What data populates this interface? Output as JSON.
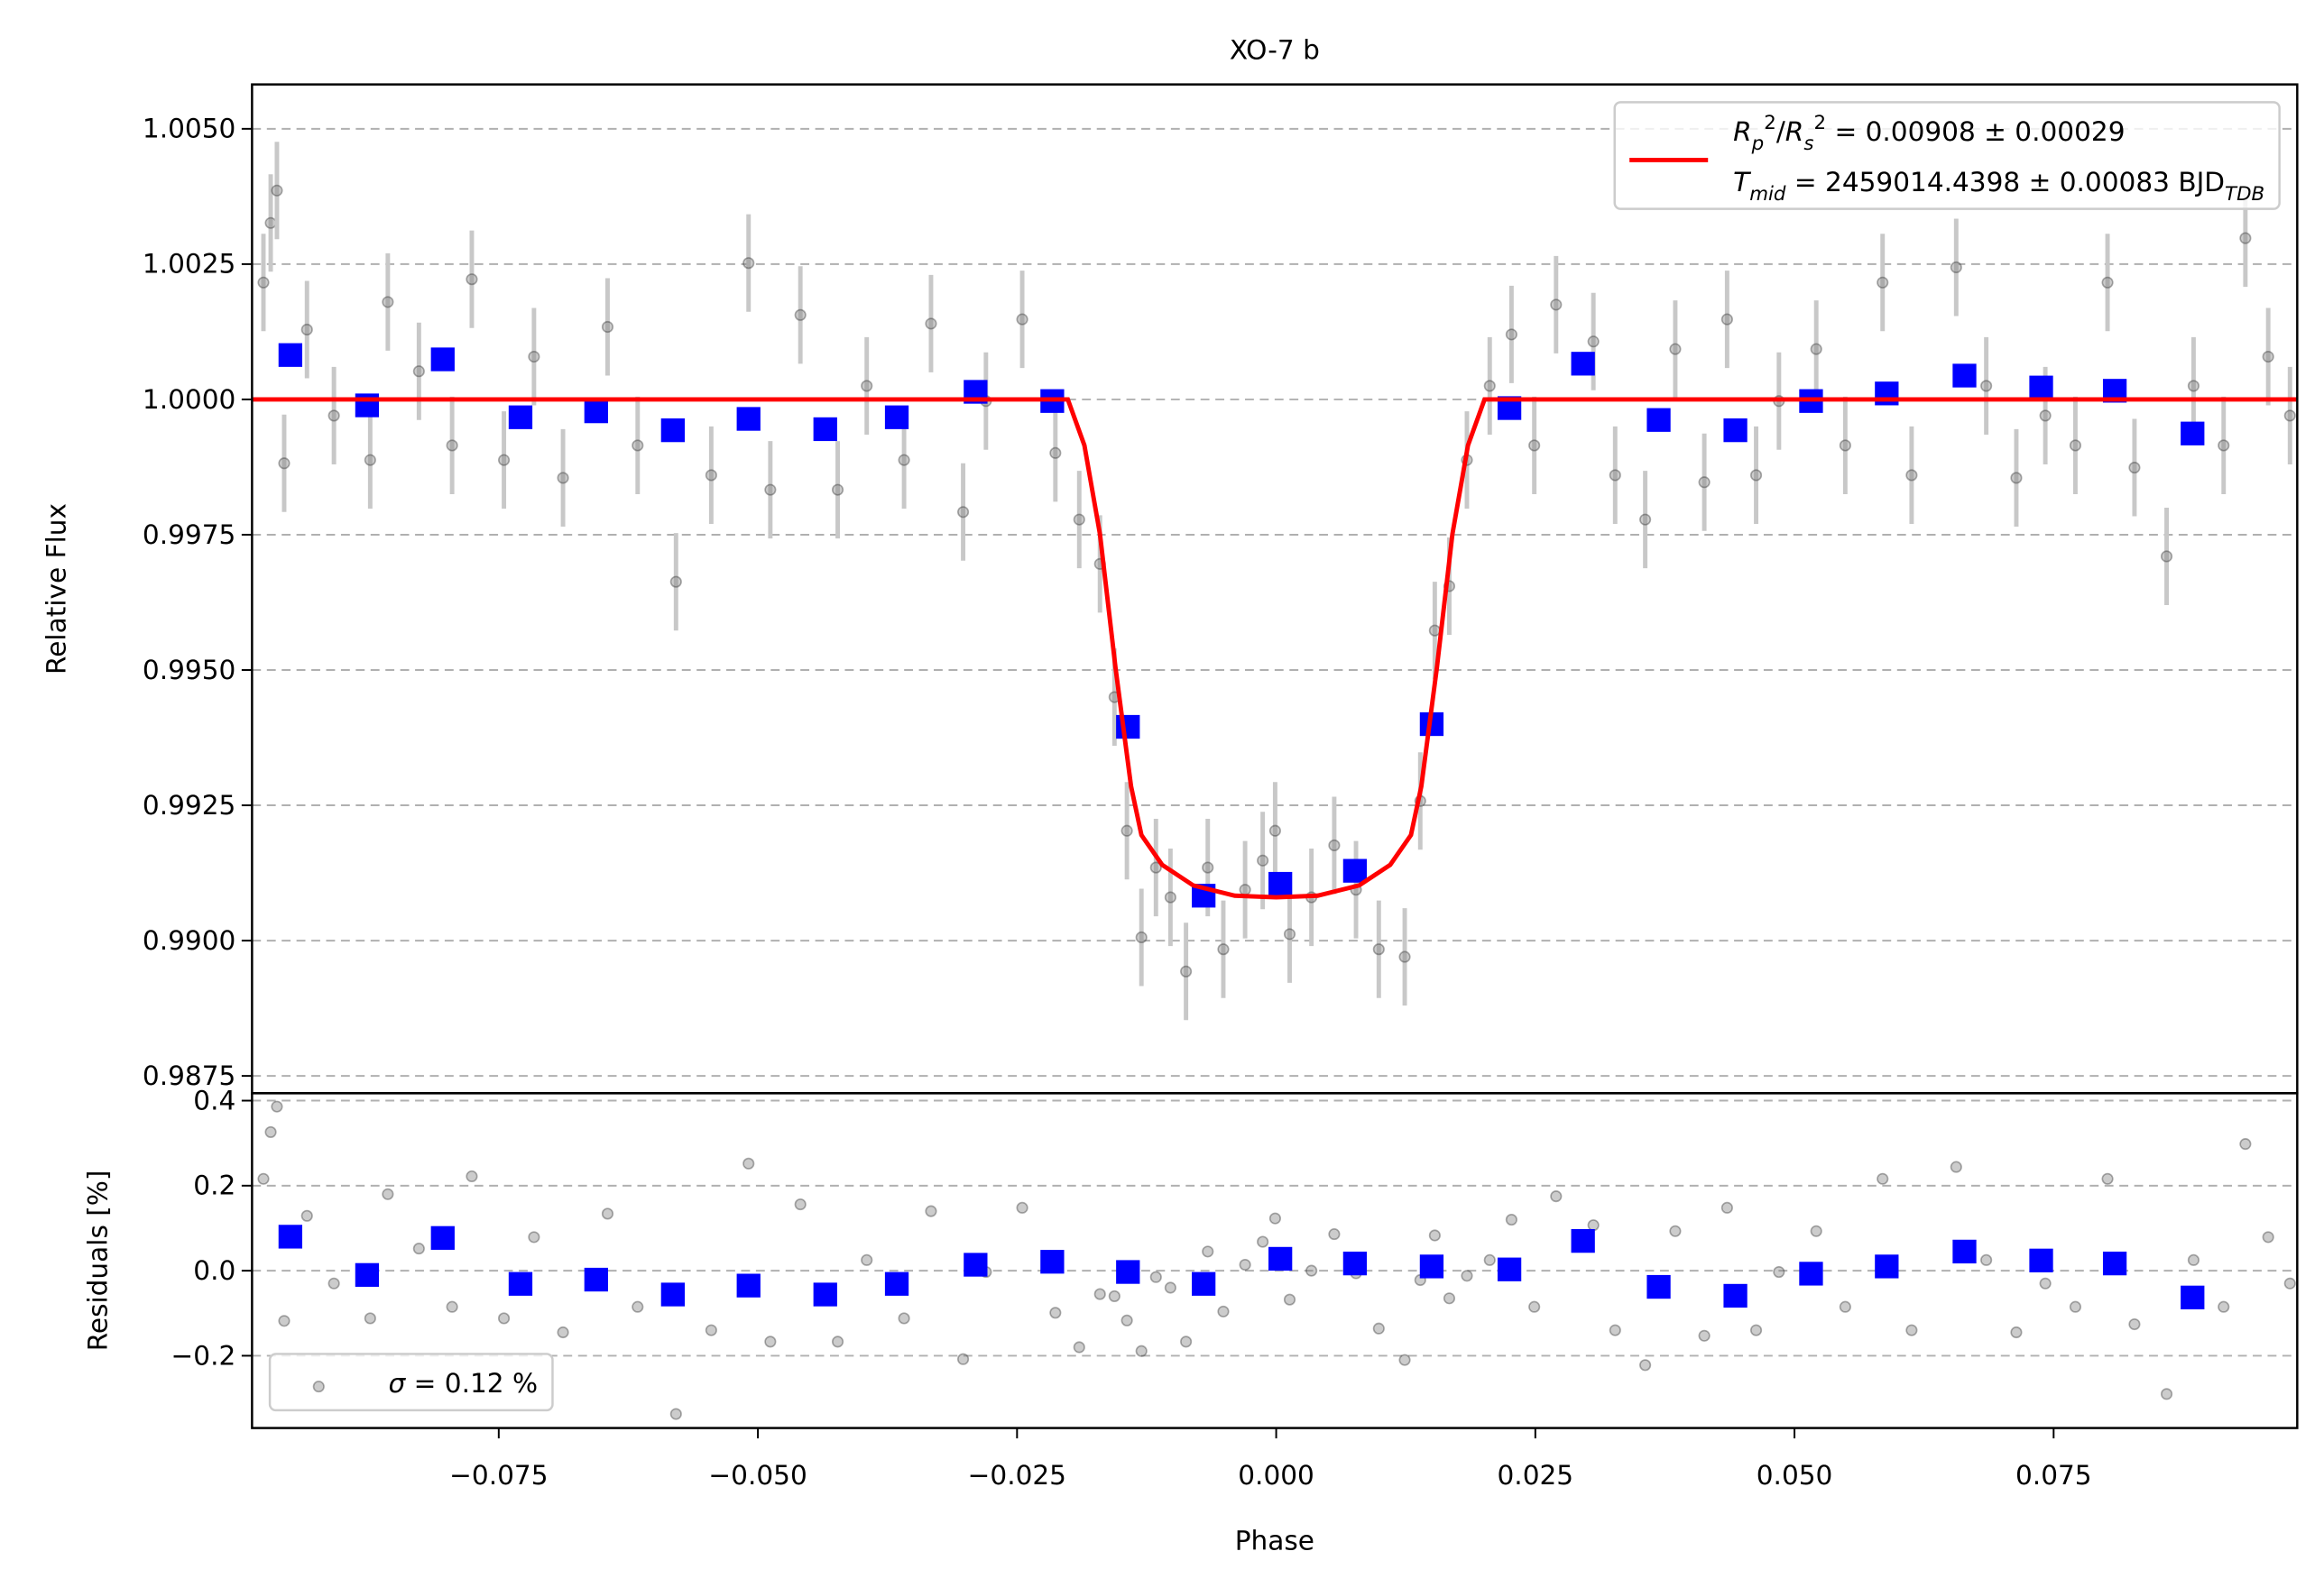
{
  "chart_data": [
    {
      "type": "scatter",
      "title": "XO-7 b",
      "ylabel": "Relative Flux",
      "xlim": [
        -0.0988,
        0.0985
      ],
      "ylim": [
        0.98718,
        1.00582
      ],
      "yticks": [
        {
          "value": 1.005,
          "label": "1.0050"
        },
        {
          "value": 1.0025,
          "label": "1.0025"
        },
        {
          "value": 1.0,
          "label": "1.0000"
        },
        {
          "value": 0.9975,
          "label": "0.9975"
        },
        {
          "value": 0.995,
          "label": "0.9950"
        },
        {
          "value": 0.9925,
          "label": "0.9925"
        },
        {
          "value": 0.99,
          "label": "0.9900"
        },
        {
          "value": 0.9875,
          "label": "0.9875"
        }
      ],
      "grid": true,
      "legend_loc": "upper right",
      "series": [
        {
          "marker": "circle",
          "color": "#808080",
          "ecolor": "#c8c8c8",
          "yerr": 0.0009,
          "x": [
            -0.0977,
            -0.097,
            -0.0964,
            -0.0957,
            -0.0935,
            -0.0909,
            -0.0874,
            -0.0857,
            -0.0827,
            -0.0795,
            -0.0776,
            -0.0745,
            -0.0716,
            -0.0688,
            -0.0645,
            -0.0616,
            -0.0579,
            -0.0545,
            -0.0509,
            -0.0488,
            -0.0459,
            -0.0423,
            -0.0395,
            -0.0359,
            -0.0333,
            -0.0302,
            -0.028,
            -0.0245,
            -0.0213,
            -0.019,
            -0.017,
            -0.0156,
            -0.0144,
            -0.013,
            -0.0116,
            -0.0102,
            -0.0087,
            -0.0066,
            -0.0051,
            -0.003,
            -0.0013,
            -0.0001,
            0.0013,
            0.0034,
            0.0056,
            0.0077,
            0.0099,
            0.0124,
            0.0139,
            0.0153,
            0.0167,
            0.0184,
            0.0206,
            0.0227,
            0.0249,
            0.027,
            0.0306,
            0.0327,
            0.0356,
            0.0385,
            0.0413,
            0.0435,
            0.0463,
            0.0485,
            0.0521,
            0.0549,
            0.0585,
            0.0613,
            0.0656,
            0.0685,
            0.0714,
            0.0742,
            0.0771,
            0.0802,
            0.0828,
            0.0859,
            0.0885,
            0.0914,
            0.0935,
            0.0957,
            0.0978
          ],
          "values": [
            1.00216,
            1.00326,
            1.00386,
            0.99882,
            1.00129,
            0.9997,
            0.99888,
            1.0018,
            1.00052,
            0.99915,
            1.00222,
            0.99888,
            1.00079,
            0.99855,
            1.00134,
            0.99915,
            0.99663,
            0.9986,
            1.00252,
            0.99833,
            1.00156,
            0.99833,
            1.00025,
            0.99888,
            1.0014,
            0.99792,
            0.99997,
            1.00148,
            0.99901,
            0.99778,
            0.99696,
            0.9945,
            0.99203,
            0.99006,
            0.99135,
            0.9908,
            0.98943,
            0.99135,
            0.98984,
            0.99094,
            0.99148,
            0.99203,
            0.99012,
            0.9908,
            0.99176,
            0.99094,
            0.98984,
            0.9897,
            0.99258,
            0.99573,
            0.99655,
            0.99888,
            1.00025,
            1.0012,
            0.99915,
            1.00175,
            1.00107,
            0.9986,
            0.99778,
            1.00093,
            0.99847,
            1.00148,
            0.9986,
            0.99997,
            1.00093,
            0.99915,
            1.00216,
            0.9986,
            1.00244,
            1.00025,
            0.99855,
            0.9997,
            0.99915,
            1.00216,
            0.99874,
            0.9971,
            1.00025,
            0.99915,
            1.00298,
            1.00079,
            0.9997
          ]
        },
        {
          "marker": "square",
          "color": "#0000ff",
          "x": [
            -0.0951,
            -0.0877,
            -0.0804,
            -0.0729,
            -0.0656,
            -0.0582,
            -0.0509,
            -0.0435,
            -0.0366,
            -0.029,
            -0.0216,
            -0.0143,
            -0.007,
            0.0004,
            0.0076,
            0.015,
            0.0225,
            0.0296,
            0.0369,
            0.0443,
            0.0516,
            0.0589,
            0.0664,
            0.0738,
            0.0809,
            0.0884
          ],
          "values": [
            1.00082,
            0.99989,
            1.00074,
            0.99967,
            0.99978,
            0.99943,
            0.99964,
            0.99945,
            0.99967,
            1.00014,
            0.99997,
            0.99395,
            0.99083,
            0.99105,
            0.99129,
            0.994,
            0.99984,
            1.00066,
            0.99962,
            0.99943,
            0.99997,
            1.00011,
            1.00044,
            1.00022,
            1.00016,
            0.99937
          ]
        },
        {
          "marker": "line",
          "color": "#ff0000",
          "x": [
            -0.0988,
            -0.0201,
            -0.0185,
            -0.017,
            -0.0155,
            -0.014,
            -0.013,
            -0.011,
            -0.008,
            -0.004,
            0,
            0.004,
            0.008,
            0.011,
            0.013,
            0.014,
            0.0155,
            0.017,
            0.0185,
            0.0201,
            0.0985
          ],
          "values": [
            1.0,
            1.0,
            0.99915,
            0.99751,
            0.99504,
            0.99285,
            0.99195,
            0.9914,
            0.99102,
            0.99083,
            0.9908,
            0.99083,
            0.99102,
            0.9914,
            0.99195,
            0.99285,
            0.99504,
            0.99751,
            0.99915,
            1.0,
            1.0
          ],
          "legend": [
            [
              {
                "t": "R",
                "i": true
              },
              {
                "t": "p",
                "s": "sub",
                "i": true
              },
              {
                "t": "2",
                "s": "sup"
              },
              {
                "t": "/"
              },
              {
                "t": "R",
                "i": true
              },
              {
                "t": "s",
                "s": "sub",
                "i": true
              },
              {
                "t": "2",
                "s": "sup"
              },
              {
                "t": " = 0.00908 ± 0.00029"
              }
            ],
            [
              {
                "t": "T",
                "i": true
              },
              {
                "t": "mid",
                "s": "sub",
                "i": true
              },
              {
                "t": " = 2459014.4398 ± 0.00083 BJD"
              },
              {
                "t": "TDB",
                "s": "sub",
                "i": true
              }
            ]
          ]
        }
      ]
    },
    {
      "type": "scatter",
      "xlabel": "Phase",
      "ylabel": "Residuals [%]",
      "xlim": [
        -0.0988,
        0.0985
      ],
      "ylim": [
        -0.37,
        0.4174
      ],
      "xticks": [
        {
          "value": -0.075,
          "label": "−0.075"
        },
        {
          "value": -0.05,
          "label": "−0.050"
        },
        {
          "value": -0.025,
          "label": "−0.025"
        },
        {
          "value": 0,
          "label": "0.000"
        },
        {
          "value": 0.025,
          "label": "0.025"
        },
        {
          "value": 0.05,
          "label": "0.050"
        },
        {
          "value": 0.075,
          "label": "0.075"
        }
      ],
      "yticks": [
        0.4,
        0.2,
        {
          "value": 0,
          "label": "0.0"
        },
        {
          "value": -0.2,
          "label": "−0.2"
        }
      ],
      "grid": true,
      "legend_loc": "lower left",
      "series": [
        {
          "marker": "circle",
          "color": "#808080",
          "x": [
            -0.0977,
            -0.097,
            -0.0964,
            -0.0957,
            -0.0935,
            -0.0909,
            -0.0874,
            -0.0857,
            -0.0827,
            -0.0795,
            -0.0776,
            -0.0745,
            -0.0716,
            -0.0688,
            -0.0645,
            -0.0616,
            -0.0579,
            -0.0545,
            -0.0509,
            -0.0488,
            -0.0459,
            -0.0423,
            -0.0395,
            -0.0359,
            -0.0333,
            -0.0302,
            -0.028,
            -0.0245,
            -0.0213,
            -0.019,
            -0.017,
            -0.0156,
            -0.0144,
            -0.013,
            -0.0116,
            -0.0102,
            -0.0087,
            -0.0066,
            -0.0051,
            -0.003,
            -0.0013,
            -0.0001,
            0.0013,
            0.0034,
            0.0056,
            0.0077,
            0.0099,
            0.0124,
            0.0139,
            0.0153,
            0.0167,
            0.0184,
            0.0206,
            0.0227,
            0.0249,
            0.027,
            0.0306,
            0.0327,
            0.0356,
            0.0385,
            0.0413,
            0.0435,
            0.0463,
            0.0485,
            0.0521,
            0.0549,
            0.0585,
            0.0613,
            0.0656,
            0.0685,
            0.0714,
            0.0742,
            0.0771,
            0.0802,
            0.0828,
            0.0859,
            0.0885,
            0.0914,
            0.0935,
            0.0957,
            0.0978
          ],
          "values": [
            0.216,
            0.326,
            0.386,
            -0.118,
            0.129,
            -0.03,
            -0.112,
            0.18,
            0.052,
            -0.085,
            0.222,
            -0.112,
            0.079,
            -0.145,
            0.134,
            -0.085,
            -0.337,
            -0.14,
            0.252,
            -0.167,
            0.156,
            -0.167,
            0.025,
            -0.112,
            0.14,
            -0.208,
            -0.003,
            0.148,
            -0.099,
            -0.18,
            -0.055,
            -0.06,
            -0.117,
            -0.189,
            -0.015,
            -0.04,
            -0.167,
            0.045,
            -0.096,
            0.014,
            0.068,
            0.123,
            -0.068,
            0,
            0.086,
            -0.006,
            -0.136,
            -0.21,
            -0.022,
            0.083,
            -0.065,
            -0.012,
            0.025,
            0.12,
            -0.085,
            0.175,
            0.107,
            -0.14,
            -0.222,
            0.093,
            -0.153,
            0.148,
            -0.14,
            -0.003,
            0.093,
            -0.085,
            0.216,
            -0.14,
            0.244,
            0.025,
            -0.145,
            -0.03,
            -0.085,
            0.216,
            -0.126,
            -0.29,
            0.025,
            -0.085,
            0.298,
            0.079,
            -0.03
          ],
          "legend": [
            [
              {
                "t": "σ",
                "i": true
              },
              {
                "t": " = 0.12 %"
              }
            ]
          ]
        },
        {
          "marker": "square",
          "color": "#0000ff",
          "x": [
            -0.0951,
            -0.0877,
            -0.0804,
            -0.0729,
            -0.0656,
            -0.0582,
            -0.0509,
            -0.0435,
            -0.0366,
            -0.029,
            -0.0216,
            -0.0143,
            -0.007,
            0.0004,
            0.0076,
            0.015,
            0.0225,
            0.0296,
            0.0369,
            0.0443,
            0.0516,
            0.0589,
            0.0664,
            0.0738,
            0.0809,
            0.0884
          ],
          "values": [
            0.08,
            -0.01,
            0.077,
            -0.031,
            -0.021,
            -0.056,
            -0.035,
            -0.056,
            -0.031,
            0.014,
            0.021,
            -0.003,
            -0.031,
            0.028,
            0.017,
            0.01,
            0.003,
            0.07,
            -0.038,
            -0.059,
            -0.007,
            0.01,
            0.045,
            0.024,
            0.017,
            -0.063
          ]
        }
      ]
    }
  ]
}
